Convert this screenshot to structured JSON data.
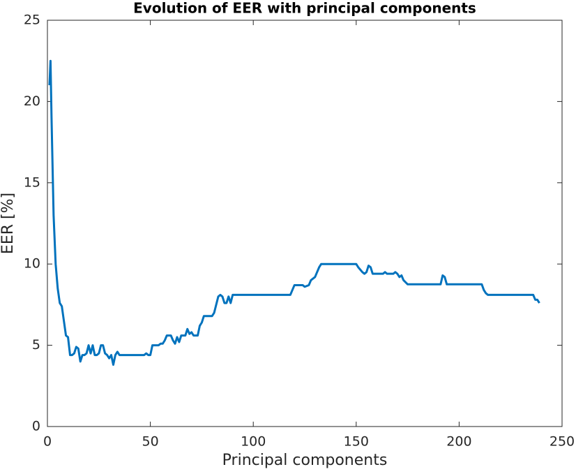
{
  "chart_data": {
    "type": "line",
    "title": "Evolution of EER with principal components",
    "x_label": "Principal components",
    "y_label": "EER [%]",
    "x": [
      1,
      1.5,
      2,
      3,
      4,
      5,
      6,
      7,
      8,
      9,
      10,
      11,
      12,
      13,
      14,
      15,
      16,
      17,
      18,
      19,
      20,
      21,
      22,
      23,
      24,
      25,
      26,
      27,
      28,
      29,
      30,
      31,
      32,
      33,
      34,
      35,
      47,
      48,
      49,
      50,
      51,
      54,
      55,
      56,
      57,
      58,
      60,
      61,
      62,
      63,
      64,
      65,
      67,
      68,
      69,
      70,
      71,
      73,
      74,
      75,
      76,
      80,
      81,
      82,
      83,
      84,
      85,
      86,
      87,
      88,
      89,
      90,
      118,
      119,
      120,
      124,
      125,
      127,
      128,
      130,
      131,
      132,
      133,
      150,
      151,
      153,
      154,
      155,
      156,
      157,
      158,
      160,
      163,
      164,
      165,
      168,
      169,
      170,
      171,
      172,
      173,
      175,
      191,
      192,
      193,
      194,
      211,
      212,
      213,
      214,
      236,
      237,
      238,
      239
    ],
    "series": [
      {
        "name": "EER",
        "color": "#0072bd",
        "values": [
          21.0,
          22.5,
          19,
          13,
          10,
          8.5,
          7.6,
          7.4,
          6.5,
          5.6,
          5.5,
          4.4,
          4.4,
          4.5,
          4.9,
          4.8,
          4.0,
          4.4,
          4.4,
          4.5,
          5.0,
          4.5,
          5.0,
          4.4,
          4.4,
          4.5,
          5.0,
          5.0,
          4.5,
          4.4,
          4.2,
          4.4,
          3.8,
          4.4,
          4.6,
          4.4,
          4.4,
          4.5,
          4.4,
          4.4,
          5.0,
          5.0,
          5.1,
          5.1,
          5.3,
          5.6,
          5.6,
          5.3,
          5.1,
          5.5,
          5.2,
          5.6,
          5.6,
          6.0,
          5.7,
          5.8,
          5.6,
          5.6,
          6.2,
          6.4,
          6.8,
          6.8,
          7.0,
          7.5,
          8.0,
          8.1,
          8.0,
          7.6,
          7.6,
          8.0,
          7.6,
          8.1,
          8.1,
          8.4,
          8.7,
          8.7,
          8.6,
          8.7,
          9.0,
          9.2,
          9.5,
          9.8,
          10.0,
          10.0,
          9.8,
          9.5,
          9.4,
          9.5,
          9.9,
          9.8,
          9.4,
          9.4,
          9.4,
          9.5,
          9.4,
          9.4,
          9.5,
          9.4,
          9.2,
          9.3,
          9.0,
          8.75,
          8.75,
          9.3,
          9.2,
          8.75,
          8.75,
          8.4,
          8.2,
          8.1,
          8.1,
          7.8,
          7.8,
          7.6
        ]
      }
    ],
    "xlim": [
      0,
      250
    ],
    "xticks": [
      0,
      50,
      100,
      150,
      200,
      250
    ],
    "ylim": [
      0,
      25
    ],
    "yticks": [
      0,
      5,
      10,
      15,
      20,
      25
    ],
    "grid": false
  }
}
